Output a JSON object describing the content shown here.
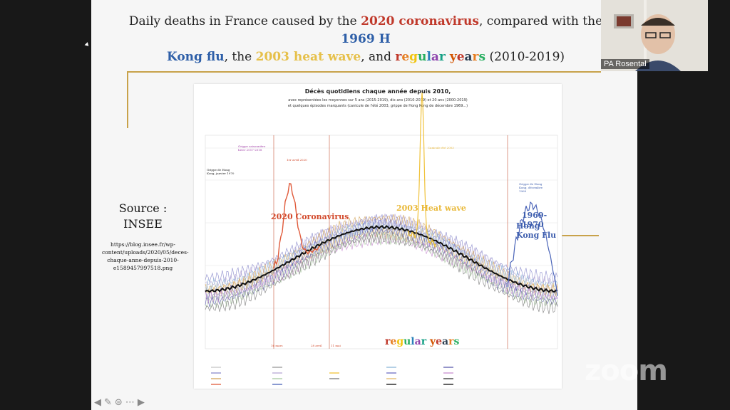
{
  "slide": {
    "title_parts": [
      {
        "text": "Daily deaths in France caused by the ",
        "cls": ""
      },
      {
        "text": "2020 coronavirus",
        "cls": "t-red"
      },
      {
        "text": ", compared with the ",
        "cls": ""
      },
      {
        "text": "1969 H",
        "cls": "t-blue"
      },
      {
        "text": "Kong flu",
        "cls": "t-blue"
      },
      {
        "text": ", the ",
        "cls": ""
      },
      {
        "text": "2003 heat wave",
        "cls": "t-yellow"
      },
      {
        "text": ", and ",
        "cls": ""
      },
      {
        "text": "regular years",
        "cls": "multicolor"
      },
      {
        "text": " (2010-2019)",
        "cls": ""
      }
    ],
    "source_label": "Source :",
    "source_name": "INSEE",
    "source_url": "https://blog.insee.fr/wp-content/uploads/2020/05/deces-chaque-anne-depuis-2010-e1589457997518.png"
  },
  "chart": {
    "title": "Décès quotidiens chaque année depuis 2010,",
    "subtitle_1": "avec représentées les moyennes sur 5 ans (2015-2019), dix ans (2010-2019) et 20 ans (2000-2019)",
    "subtitle_2": "et quelques épisodes marquants (canicule de l'été 2003, grippe de Hong Kong de décembre 1969...)",
    "annotations": {
      "covid": "2020 Coronavirus",
      "heatwave": "2003 Heat wave",
      "hongkong_1": "1969-1970",
      "hongkong_2": "Hong Kong Flu",
      "regular": "regular years"
    },
    "small_labels": {
      "gripe_hk": "Grippe de Hong Kong, janvier 1970",
      "gripe_sais": "Grippe saisonnière hiver 2017-2018",
      "covid_peak": "1er avril 2020",
      "canicule": "Canicule été 2003",
      "hk_dec": "Grippe de Hong Kong, décembre 1969",
      "mars": "16 mars",
      "avril": "28 avril",
      "mai": "11 mai"
    },
    "colors": {
      "covid": "#e05a3a",
      "heat": "#f0c23a",
      "hk": "#4a64b8",
      "mean": "#111111",
      "gold": "#c8a24a"
    }
  },
  "video": {
    "name": "PA Rosental"
  },
  "zoom": {
    "logo": "zoom"
  },
  "toolbar": {
    "icons": [
      "arrow-left-icon",
      "pen-icon",
      "options-icon",
      "more-icon",
      "arrow-right-icon"
    ]
  }
}
